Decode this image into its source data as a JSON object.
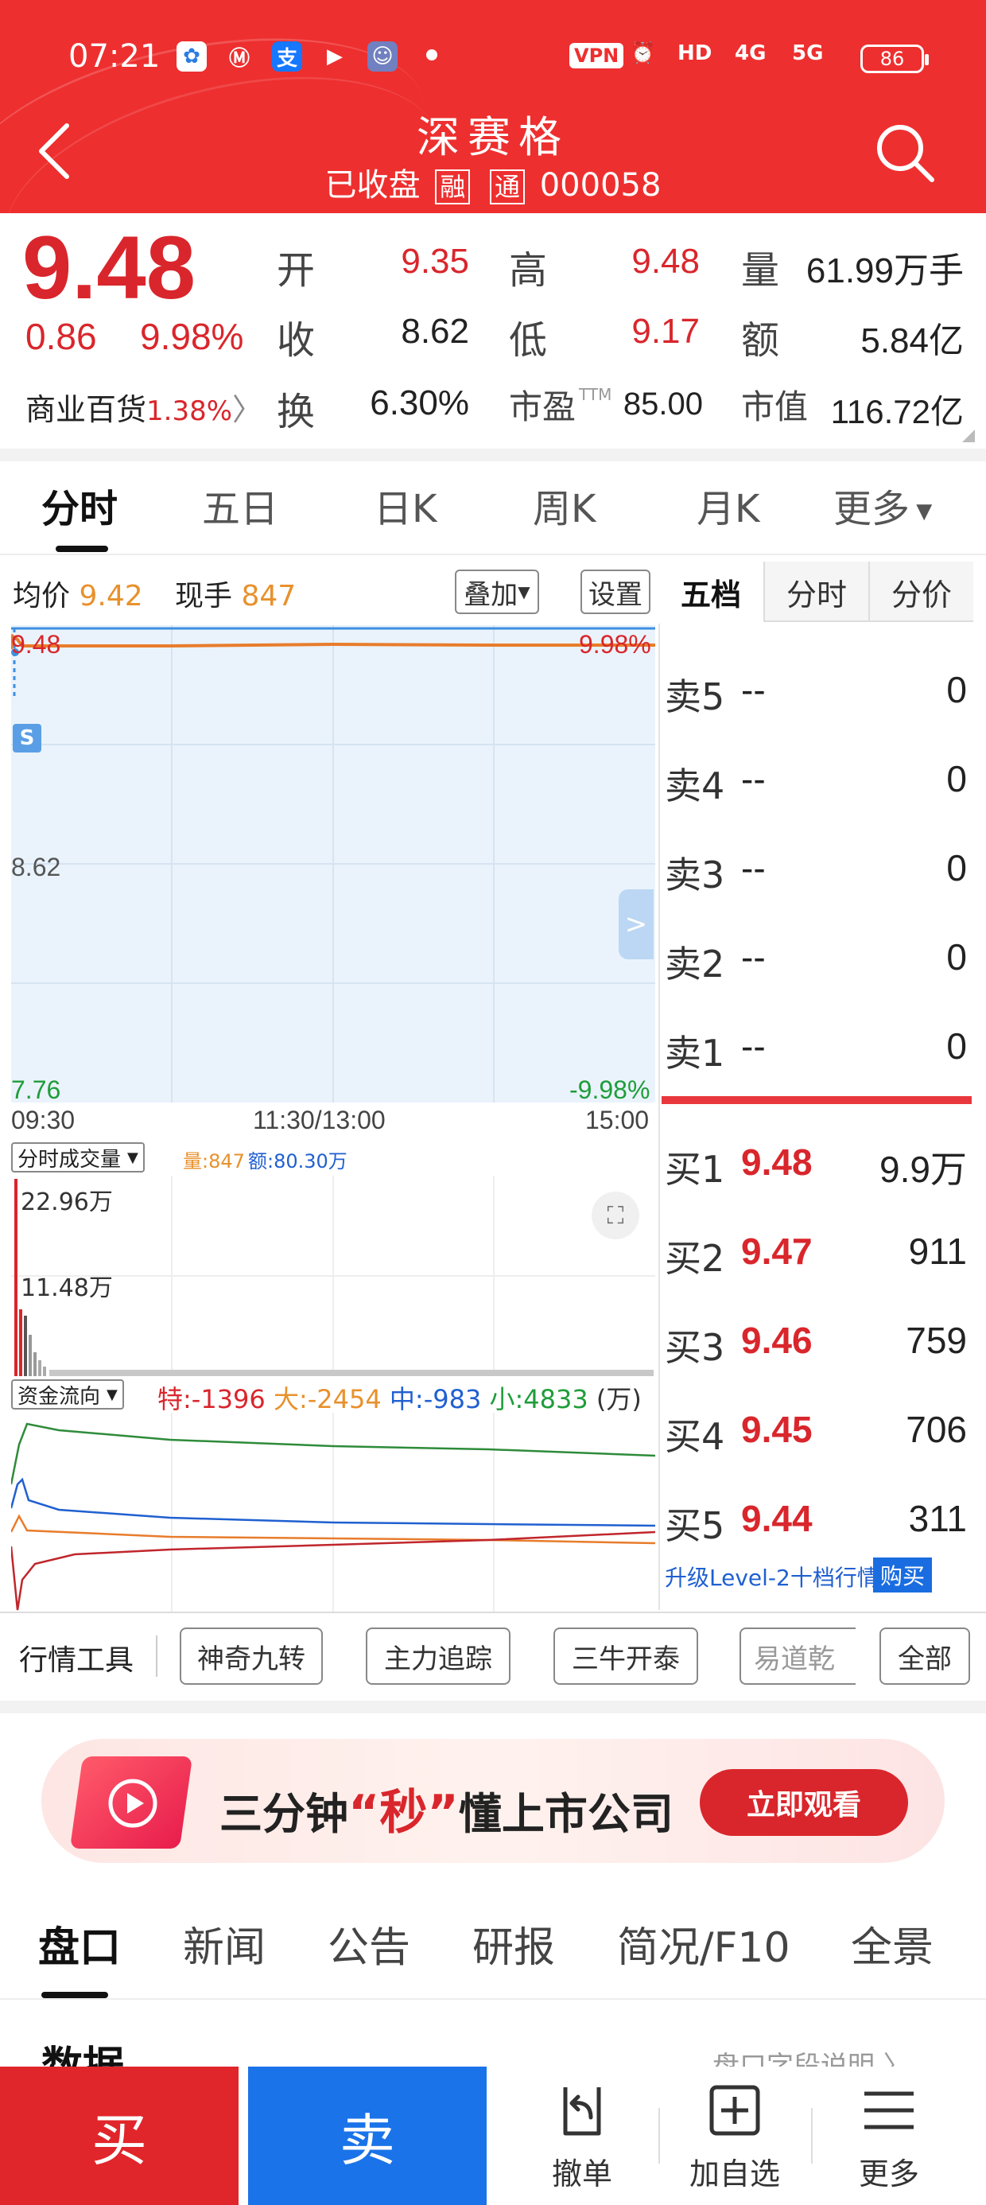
{
  "status_bar": {
    "time": "07:21",
    "vpn": "VPN",
    "hd": "HD",
    "net1": "4G",
    "net2": "5G",
    "battery": "86"
  },
  "header": {
    "stock_name": "深赛格",
    "status": "已收盘",
    "badge_margin": "融",
    "badge_connect": "通",
    "code": "000058"
  },
  "quote": {
    "price": "9.48",
    "change": "0.86",
    "change_pct": "9.98%",
    "open_label": "开",
    "open": "9.35",
    "high_label": "高",
    "high": "9.48",
    "volume_label": "量",
    "volume": "61.99万手",
    "prev_close_label": "收",
    "prev_close": "8.62",
    "low_label": "低",
    "low": "9.17",
    "amount_label": "额",
    "amount": "5.84亿",
    "sector": "商业百货",
    "sector_pct": "1.38%",
    "turnover_label": "换",
    "turnover": "6.30%",
    "pe_label": "市盈",
    "pe_sup": "TTM",
    "pe": "85.00",
    "mcap_label": "市值",
    "mcap": "116.72亿"
  },
  "tabs": [
    "分时",
    "五日",
    "日K",
    "周K",
    "月K",
    "更多"
  ],
  "chart": {
    "avg_label": "均价",
    "avg_price": "9.42",
    "now_label": "现手",
    "now_hand": "847",
    "overlay_btn": "叠加",
    "settings_btn": "设置",
    "y_top": "9.48",
    "y_top_pct": "9.98%",
    "y_mid": "8.62",
    "y_bottom": "7.76",
    "y_bottom_pct": "-9.98%",
    "x_start": "09:30",
    "x_mid": "11:30/13:00",
    "x_end": "15:00",
    "s_marker": "S",
    "vol_selector": "分时成交量",
    "vol_label": "量:847",
    "amt_label": "额:80.30万",
    "vol_max": "22.96万",
    "vol_half": "11.48万",
    "flow_selector": "资金流向",
    "flow_special": "特:-1396",
    "flow_big": "大:-2454",
    "flow_mid": "中:-983",
    "flow_small": "小:4833",
    "flow_unit": "(万)"
  },
  "order_book": {
    "tabs": [
      "五档",
      "分时",
      "分价"
    ],
    "asks": [
      {
        "label": "卖5",
        "price": "--",
        "vol": "0"
      },
      {
        "label": "卖4",
        "price": "--",
        "vol": "0"
      },
      {
        "label": "卖3",
        "price": "--",
        "vol": "0"
      },
      {
        "label": "卖2",
        "price": "--",
        "vol": "0"
      },
      {
        "label": "卖1",
        "price": "--",
        "vol": "0"
      }
    ],
    "bids": [
      {
        "label": "买1",
        "price": "9.48",
        "vol": "9.9万"
      },
      {
        "label": "买2",
        "price": "9.47",
        "vol": "911"
      },
      {
        "label": "买3",
        "price": "9.46",
        "vol": "759"
      },
      {
        "label": "买4",
        "price": "9.45",
        "vol": "706"
      },
      {
        "label": "买5",
        "price": "9.44",
        "vol": "311"
      }
    ],
    "level2_text": "升级Level-2十档行情",
    "buy_label": "购买"
  },
  "tools": {
    "label": "行情工具",
    "items": [
      "神奇九转",
      "主力追踪",
      "三牛开泰",
      "易道乾",
      "全部"
    ]
  },
  "banner": {
    "text_a": "三分钟",
    "text_em": "“秒”",
    "text_b": "懂上市公司",
    "cta": "立即观看"
  },
  "bottom_tabs": [
    "盘口",
    "新闻",
    "公告",
    "研报",
    "简况/F10",
    "全景"
  ],
  "section": {
    "title": "数据",
    "link": "盘口字段说明"
  },
  "bottom_bar": {
    "buy": "买",
    "sell": "卖",
    "cancel": "撤单",
    "add_watch": "加自选",
    "more": "更多"
  },
  "colors": {
    "header": "#ee2f2f",
    "up": "#d9262c",
    "accent_blue": "#1a73e8",
    "price_line": "#e87c2c"
  }
}
